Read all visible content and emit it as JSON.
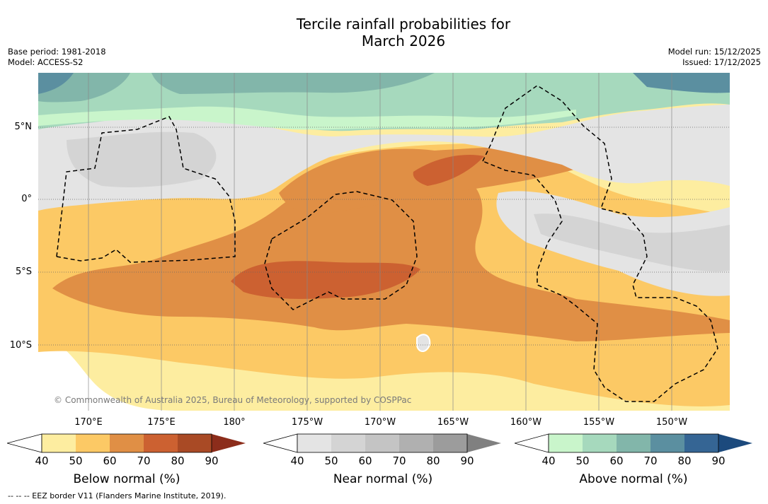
{
  "title_line1": "Tercile rainfall probabilities for",
  "title_line2": "March 2026",
  "base_period": "Base period: 1981-2018",
  "model": "Model: ACCESS-S2",
  "model_run": "Model run: 15/12/2025",
  "issued": "Issued: 17/12/2025",
  "copyright": "© Commonwealth of Australia 2025, Bureau of Meteorology, supported by COSPPac",
  "lat_labels": [
    "5°N",
    "0°",
    "5°S",
    "10°S"
  ],
  "lon_labels": [
    "170°E",
    "175°E",
    "180°",
    "175°W",
    "170°W",
    "165°W",
    "160°W",
    "155°W",
    "150°W"
  ],
  "colorbars": [
    {
      "label": "Below normal (%)",
      "ticks": [
        "40",
        "50",
        "60",
        "70",
        "80",
        "90"
      ],
      "colors": [
        "#fdeda0",
        "#fcc965",
        "#e08f45",
        "#cc6131",
        "#a94a25",
        "#8c2d1b"
      ]
    },
    {
      "label": "Near normal (%)",
      "ticks": [
        "40",
        "50",
        "60",
        "70",
        "80",
        "90"
      ],
      "colors": [
        "#e4e4e4",
        "#d4d4d4",
        "#c4c4c4",
        "#b0b0b0",
        "#9c9c9c",
        "#808080"
      ]
    },
    {
      "label": "Above normal (%)",
      "ticks": [
        "40",
        "50",
        "60",
        "70",
        "80",
        "90"
      ],
      "colors": [
        "#c9f5cb",
        "#a6d9bd",
        "#82b6aa",
        "#5b8fa0",
        "#356594",
        "#1c4a7d"
      ]
    }
  ],
  "footnote": "-- -- -- EEZ border V11 (Flanders Marine Institute, 2019)."
}
